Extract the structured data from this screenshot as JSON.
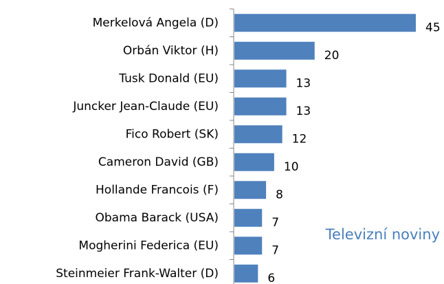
{
  "chart_data": {
    "type": "bar",
    "orientation": "horizontal",
    "categories": [
      "Merkelová Angela (D)",
      "Orbán Viktor (H)",
      "Tusk Donald (EU)",
      "Juncker Jean-Claude (EU)",
      "Fico Robert (SK)",
      "Cameron David (GB)",
      "Hollande Francois (F)",
      "Obama Barack (USA)",
      "Mogherini Federica (EU)",
      "Steinmeier Frank-Walter (D)"
    ],
    "values": [
      45,
      20,
      13,
      13,
      12,
      10,
      8,
      7,
      7,
      6
    ],
    "color": "#4f81bd",
    "annotation": "Televizní noviny",
    "annotation_color": "#4a7ebb"
  }
}
